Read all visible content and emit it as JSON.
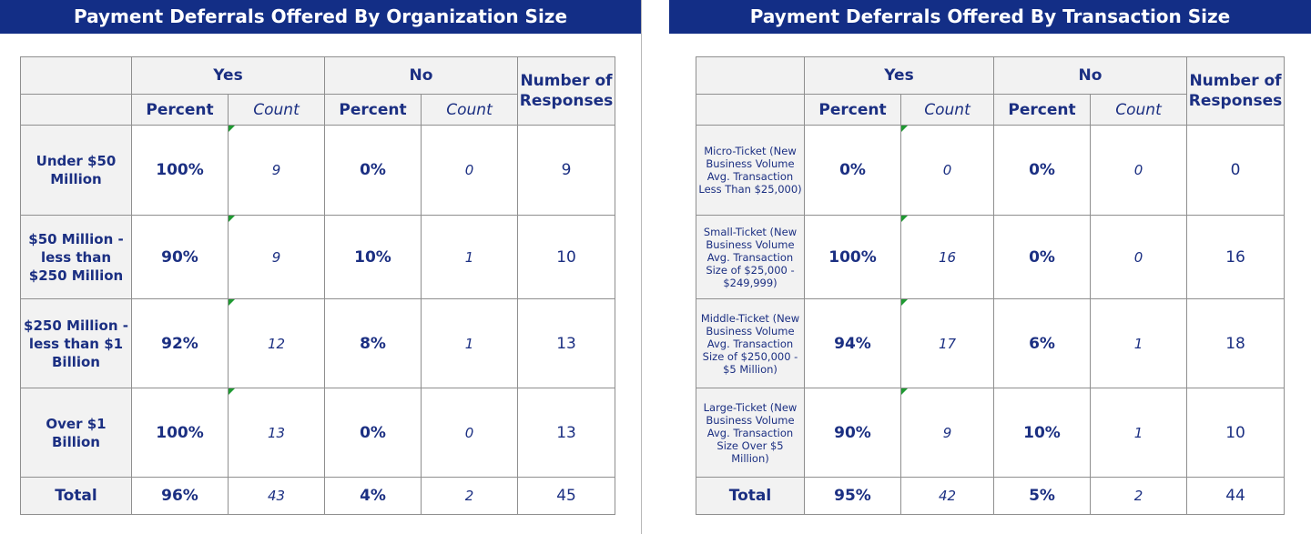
{
  "left": {
    "title": "Payment Deferrals Offered By Organization Size",
    "headers": {
      "yes": "Yes",
      "no": "No",
      "responses": "Number of Responses",
      "percent": "Percent",
      "count": "Count"
    },
    "rows": [
      {
        "label": "Under $50 Million",
        "yes_pct": "100%",
        "yes_count": "9",
        "no_pct": "0%",
        "no_count": "0",
        "responses": "9"
      },
      {
        "label": "$50 Million - less than $250 Million",
        "yes_pct": "90%",
        "yes_count": "9",
        "no_pct": "10%",
        "no_count": "1",
        "responses": "10"
      },
      {
        "label": "$250 Million - less than $1 Billion",
        "yes_pct": "92%",
        "yes_count": "12",
        "no_pct": "8%",
        "no_count": "1",
        "responses": "13"
      },
      {
        "label": "Over $1 Billion",
        "yes_pct": "100%",
        "yes_count": "13",
        "no_pct": "0%",
        "no_count": "0",
        "responses": "13"
      }
    ],
    "total": {
      "label": "Total",
      "yes_pct": "96%",
      "yes_count": "43",
      "no_pct": "4%",
      "no_count": "2",
      "responses": "45"
    }
  },
  "right": {
    "title": "Payment Deferrals Offered By Transaction Size",
    "headers": {
      "yes": "Yes",
      "no": "No",
      "responses": "Number of Responses",
      "percent": "Percent",
      "count": "Count"
    },
    "rows": [
      {
        "label": "Micro-Ticket (New Business Volume Avg. Transaction Less Than $25,000)",
        "yes_pct": "0%",
        "yes_count": "0",
        "no_pct": "0%",
        "no_count": "0",
        "responses": "0"
      },
      {
        "label": "Small-Ticket (New Business Volume Avg. Transaction Size of $25,000 - $249,999)",
        "yes_pct": "100%",
        "yes_count": "16",
        "no_pct": "0%",
        "no_count": "0",
        "responses": "16"
      },
      {
        "label": "Middle-Ticket (New Business Volume Avg. Transaction Size of $250,000 - $5 Million)",
        "yes_pct": "94%",
        "yes_count": "17",
        "no_pct": "6%",
        "no_count": "1",
        "responses": "18"
      },
      {
        "label": "Large-Ticket (New Business Volume Avg. Transaction Size Over $5 Million)",
        "yes_pct": "90%",
        "yes_count": "9",
        "no_pct": "10%",
        "no_count": "1",
        "responses": "10"
      }
    ],
    "total": {
      "label": "Total",
      "yes_pct": "95%",
      "yes_count": "42",
      "no_pct": "5%",
      "no_count": "2",
      "responses": "44"
    }
  },
  "colors": {
    "title_bar": "#132e86",
    "text": "#1b2f82",
    "count_text": "#a5a5a5",
    "comment_marker": "#1f9a32",
    "header_fill": "#f2f2f2"
  }
}
